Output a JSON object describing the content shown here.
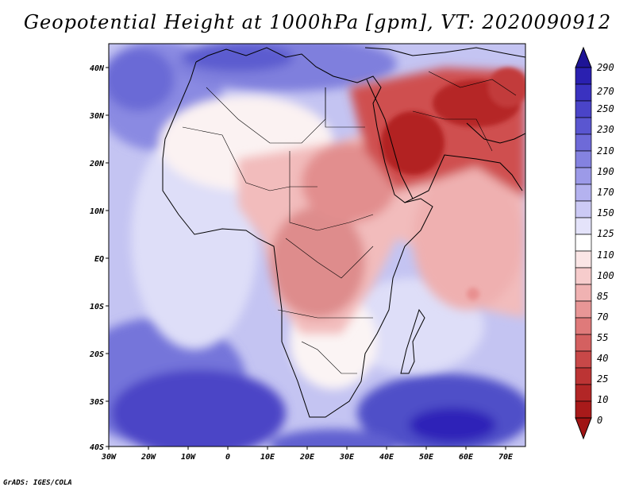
{
  "title": "Geopotential Height at 1000hPa [gpm], VT: 2020090912",
  "credit": "GrADS: IGES/COLA",
  "map": {
    "lon_range": [
      -30,
      75
    ],
    "lat_range": [
      -40,
      45
    ],
    "x_ticks": [
      "30W",
      "20W",
      "10W",
      "0",
      "10E",
      "20E",
      "30E",
      "40E",
      "50E",
      "60E",
      "70E"
    ],
    "y_ticks": [
      "40N",
      "30N",
      "20N",
      "10N",
      "EQ",
      "10S",
      "20S",
      "30S",
      "40S"
    ]
  },
  "colorbar": {
    "labels": [
      "290",
      "270",
      "250",
      "230",
      "210",
      "190",
      "170",
      "150",
      "125",
      "110",
      "100",
      "85",
      "70",
      "55",
      "40",
      "25",
      "10",
      "0"
    ],
    "colors": {
      "deep_blue": "#2d22b8",
      "mid_blue": "#6e6ed6",
      "light_blue": "#b8b8f0",
      "pale_blue": "#dcdcf7",
      "white": "#ffffff",
      "pale_red": "#f6c8c8",
      "mid_red": "#de6f6f",
      "deep_red": "#b22222"
    }
  }
}
